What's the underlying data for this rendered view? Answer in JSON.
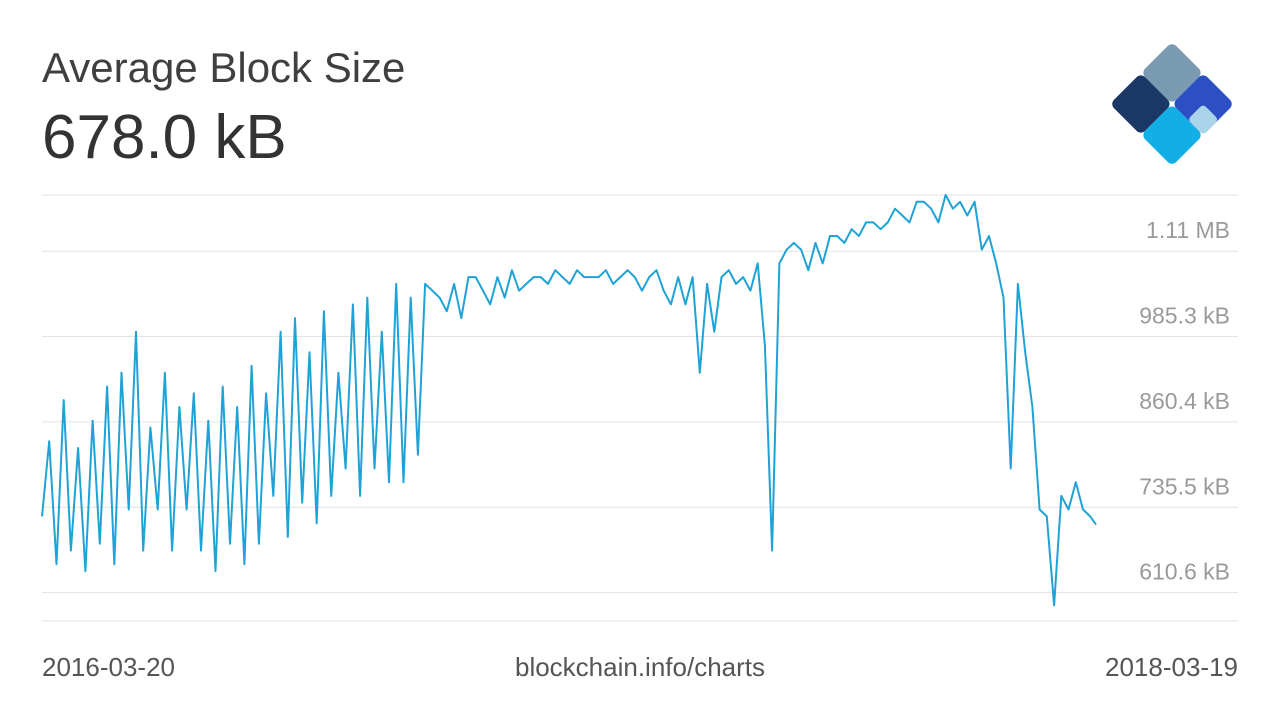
{
  "header": {
    "title": "Average Block Size",
    "value": "678.0 kB"
  },
  "footer": {
    "start_date": "2016-03-20",
    "source": "blockchain.info/charts",
    "end_date": "2018-03-19"
  },
  "colors": {
    "line": "#1fa2d6",
    "grid": "#e3e3e3",
    "tick_text": "#9a9a9a",
    "logo_dark": "#1a3766",
    "logo_gray": "#7a9ab2",
    "logo_blue": "#2c4fc4",
    "logo_cyan": "#12aee6",
    "logo_light": "#a9d4ea"
  },
  "chart_data": {
    "type": "line",
    "title": "Average Block Size",
    "x_start": "2016-03-20",
    "x_end": "2018-03-19",
    "ylim": [
      537,
      1160
    ],
    "yticks": [
      {
        "value": 1110.0,
        "label": "1.11 MB"
      },
      {
        "value": 985.3,
        "label": "985.3 kB"
      },
      {
        "value": 860.4,
        "label": "860.4 kB"
      },
      {
        "value": 735.5,
        "label": "735.5 kB"
      },
      {
        "value": 610.6,
        "label": "610.6 kB"
      }
    ],
    "grid": true,
    "series": [
      {
        "x": [
          "2016-03-20",
          "2016-03-25",
          "2016-03-30",
          "2016-04-04",
          "2016-04-09",
          "2016-04-14",
          "2016-04-19",
          "2016-04-24",
          "2016-04-29",
          "2016-05-04",
          "2016-05-09",
          "2016-05-14",
          "2016-05-19",
          "2016-05-24",
          "2016-05-29",
          "2016-06-03",
          "2016-06-08",
          "2016-06-13",
          "2016-06-18",
          "2016-06-23",
          "2016-06-28",
          "2016-07-03",
          "2016-07-08",
          "2016-07-13",
          "2016-07-18",
          "2016-07-23",
          "2016-07-28",
          "2016-08-02",
          "2016-08-07",
          "2016-08-12",
          "2016-08-17",
          "2016-08-22",
          "2016-08-27",
          "2016-09-01",
          "2016-09-06",
          "2016-09-11",
          "2016-09-16",
          "2016-09-21",
          "2016-09-26",
          "2016-10-01",
          "2016-10-06",
          "2016-10-11",
          "2016-10-16",
          "2016-10-21",
          "2016-10-26",
          "2016-10-31",
          "2016-11-05",
          "2016-11-10",
          "2016-11-15",
          "2016-11-20",
          "2016-11-25",
          "2016-11-30",
          "2016-12-05",
          "2016-12-10",
          "2016-12-15",
          "2016-12-20",
          "2016-12-25",
          "2016-12-30",
          "2017-01-04",
          "2017-01-09",
          "2017-01-14",
          "2017-01-19",
          "2017-01-24",
          "2017-01-29",
          "2017-02-03",
          "2017-02-08",
          "2017-02-13",
          "2017-02-18",
          "2017-02-23",
          "2017-02-28",
          "2017-03-05",
          "2017-03-10",
          "2017-03-15",
          "2017-03-20",
          "2017-03-25",
          "2017-03-30",
          "2017-04-04",
          "2017-04-09",
          "2017-04-14",
          "2017-04-19",
          "2017-04-24",
          "2017-04-29",
          "2017-05-04",
          "2017-05-09",
          "2017-05-14",
          "2017-05-19",
          "2017-05-24",
          "2017-05-29",
          "2017-06-03",
          "2017-06-08",
          "2017-06-13",
          "2017-06-18",
          "2017-06-23",
          "2017-06-28",
          "2017-07-03",
          "2017-07-08",
          "2017-07-13",
          "2017-07-18",
          "2017-07-23",
          "2017-07-28",
          "2017-08-02",
          "2017-08-07",
          "2017-08-12",
          "2017-08-17",
          "2017-08-22",
          "2017-08-27",
          "2017-09-01",
          "2017-09-06",
          "2017-09-11",
          "2017-09-16",
          "2017-09-21",
          "2017-09-26",
          "2017-10-01",
          "2017-10-06",
          "2017-10-11",
          "2017-10-16",
          "2017-10-21",
          "2017-10-26",
          "2017-10-31",
          "2017-11-05",
          "2017-11-10",
          "2017-11-15",
          "2017-11-20",
          "2017-11-25",
          "2017-11-30",
          "2017-12-05",
          "2017-12-10",
          "2017-12-15",
          "2017-12-20",
          "2017-12-25",
          "2017-12-30",
          "2018-01-04",
          "2018-01-09",
          "2018-01-14",
          "2018-01-19",
          "2018-01-24",
          "2018-01-29",
          "2018-02-03",
          "2018-02-08",
          "2018-02-13",
          "2018-02-18",
          "2018-02-23",
          "2018-02-28",
          "2018-03-05",
          "2018-03-10",
          "2018-03-15",
          "2018-03-19"
        ],
        "y": [
          690,
          800,
          620,
          860,
          640,
          790,
          610,
          830,
          650,
          880,
          620,
          900,
          700,
          960,
          640,
          820,
          700,
          900,
          640,
          850,
          700,
          870,
          640,
          830,
          610,
          880,
          650,
          850,
          620,
          910,
          650,
          870,
          720,
          960,
          660,
          980,
          710,
          930,
          680,
          990,
          720,
          900,
          760,
          1000,
          720,
          1010,
          760,
          960,
          740,
          1030,
          740,
          1010,
          780,
          1030,
          1020,
          1010,
          990,
          1030,
          980,
          1040,
          1040,
          1020,
          1000,
          1040,
          1010,
          1050,
          1020,
          1030,
          1040,
          1040,
          1030,
          1050,
          1040,
          1030,
          1050,
          1040,
          1040,
          1040,
          1050,
          1030,
          1040,
          1050,
          1040,
          1020,
          1040,
          1050,
          1020,
          1000,
          1040,
          1000,
          1040,
          900,
          1030,
          960,
          1040,
          1050,
          1030,
          1040,
          1020,
          1060,
          940,
          640,
          1060,
          1080,
          1090,
          1080,
          1050,
          1090,
          1060,
          1100,
          1100,
          1090,
          1110,
          1100,
          1120,
          1120,
          1110,
          1120,
          1140,
          1130,
          1120,
          1150,
          1150,
          1140,
          1120,
          1160,
          1140,
          1150,
          1130,
          1150,
          1080,
          1100,
          1060,
          1010,
          760,
          1030,
          930,
          850,
          700,
          690,
          560,
          720,
          700,
          740,
          700,
          690,
          678
        ]
      }
    ]
  }
}
